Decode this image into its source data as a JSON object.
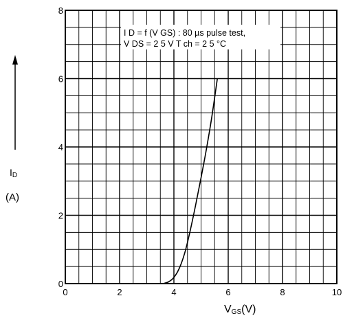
{
  "chart_data": {
    "type": "line",
    "annotation": {
      "line1": "I D = f (V GS) : 80 µs pulse test,",
      "line2": "V DS = 2 5 V     T ch = 2 5 °C"
    },
    "xlabel": {
      "main": "V",
      "sub": "GS",
      "unit": "(V)"
    },
    "ylabel": {
      "main": "I",
      "sub": "D",
      "unit": "(A)"
    },
    "xlim": [
      0,
      10
    ],
    "ylim": [
      0,
      8
    ],
    "x_ticks": [
      0,
      2,
      4,
      6,
      8,
      10
    ],
    "y_ticks": [
      0,
      2,
      4,
      6,
      8
    ],
    "grid": true,
    "series": [
      {
        "x": [
          3.6,
          3.8,
          4.0,
          4.2,
          4.4,
          4.6,
          4.8,
          5.0,
          5.2,
          5.4,
          5.6
        ],
        "y": [
          0.0,
          0.05,
          0.18,
          0.45,
          0.9,
          1.55,
          2.3,
          3.1,
          3.95,
          4.9,
          6.0
        ]
      }
    ]
  }
}
